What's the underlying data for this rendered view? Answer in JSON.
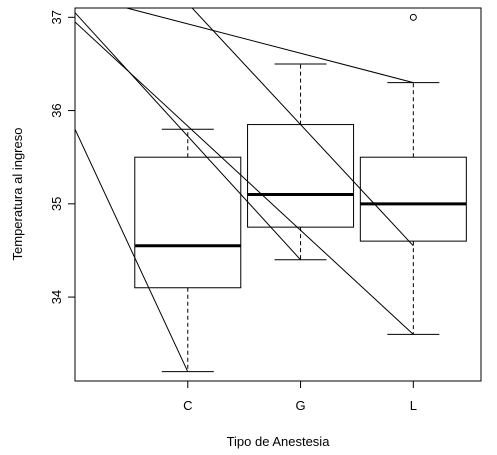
{
  "chart_data": {
    "type": "boxplot",
    "title": "",
    "xlabel": "Tipo de Anestesia",
    "ylabel": "Temperatura al ingreso",
    "categories": [
      "C",
      "G",
      "L"
    ],
    "ylim": [
      33.1,
      37.1
    ],
    "y_ticks": [
      34,
      35,
      36,
      37
    ],
    "grid": false,
    "boxes": [
      {
        "category": "C",
        "whisker_low": 33.2,
        "q1": 34.1,
        "median": 34.55,
        "q3": 35.5,
        "whisker_high": 35.8,
        "outliers": []
      },
      {
        "category": "G",
        "whisker_low": 34.4,
        "q1": 34.75,
        "median": 35.1,
        "q3": 35.85,
        "whisker_high": 36.5,
        "outliers": []
      },
      {
        "category": "L",
        "whisker_low": 33.6,
        "q1": 34.6,
        "median": 35.0,
        "q3": 35.5,
        "whisker_high": 36.3,
        "outliers": [
          37.0
        ]
      }
    ],
    "overlay_lines": [
      {
        "x1": 0.0,
        "y1": 35.8,
        "x2": 1.0,
        "y2": 33.2
      },
      {
        "x1": 0.0,
        "y1": 37.05,
        "x2": 2.0,
        "y2": 34.4
      },
      {
        "x1": 0.0,
        "y1": 36.95,
        "x2": 3.0,
        "y2": 33.6
      },
      {
        "x1": 0.3,
        "y1": 37.15,
        "x2": 3.0,
        "y2": 36.3
      },
      {
        "x1": 1.0,
        "y1": 37.15,
        "x2": 3.0,
        "y2": 34.55
      }
    ]
  }
}
